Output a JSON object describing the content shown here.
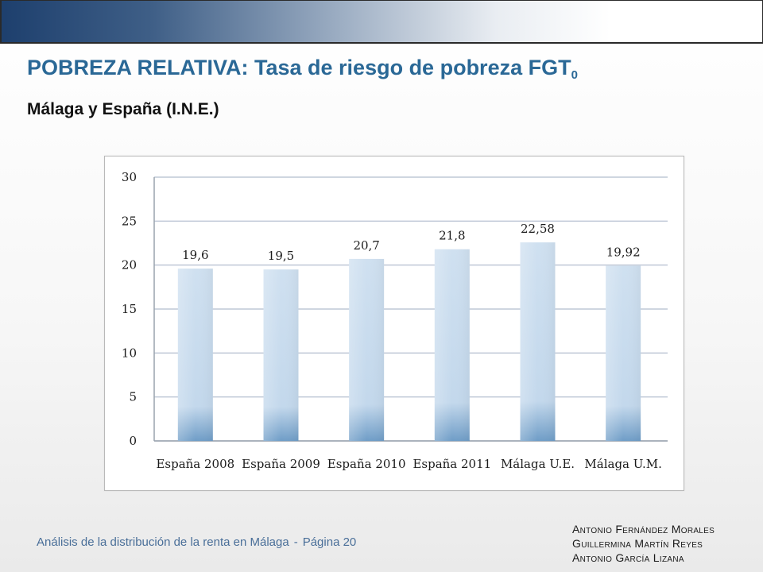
{
  "slide": {
    "title": "POBREZA RELATIVA: Tasa de riesgo de pobreza FGT",
    "title_subscript": "0",
    "subtitle": "Málaga y España (I.N.E.)"
  },
  "footer": {
    "left_text": "Análisis de la distribución de la renta en Málaga",
    "separator": "-",
    "page_text": "Página 20",
    "authors": [
      "Antonio Fernández Morales",
      "Guillermina Martín Reyes",
      "Antonio García Lizana"
    ]
  },
  "colors": {
    "title": "#2a6896",
    "bar_top": "#cfe0f0",
    "bar_bottom": "#6f9dc7",
    "grid": "#bfc8d6",
    "axis": "#9aa3ae"
  },
  "chart_data": {
    "type": "bar",
    "categories": [
      "España 2008",
      "España 2009",
      "España 2010",
      "España 2011",
      "Málaga U.E.",
      "Málaga U.M."
    ],
    "values": [
      19.6,
      19.5,
      20.7,
      21.8,
      22.58,
      19.92
    ],
    "value_labels": [
      "19,6",
      "19,5",
      "20,7",
      "21,8",
      "22,58",
      "19,92"
    ],
    "yticks": [
      0,
      5,
      10,
      15,
      20,
      25,
      30
    ],
    "ylim": [
      0,
      30
    ],
    "grid": true,
    "legend": false,
    "xlabel": "",
    "ylabel": ""
  }
}
